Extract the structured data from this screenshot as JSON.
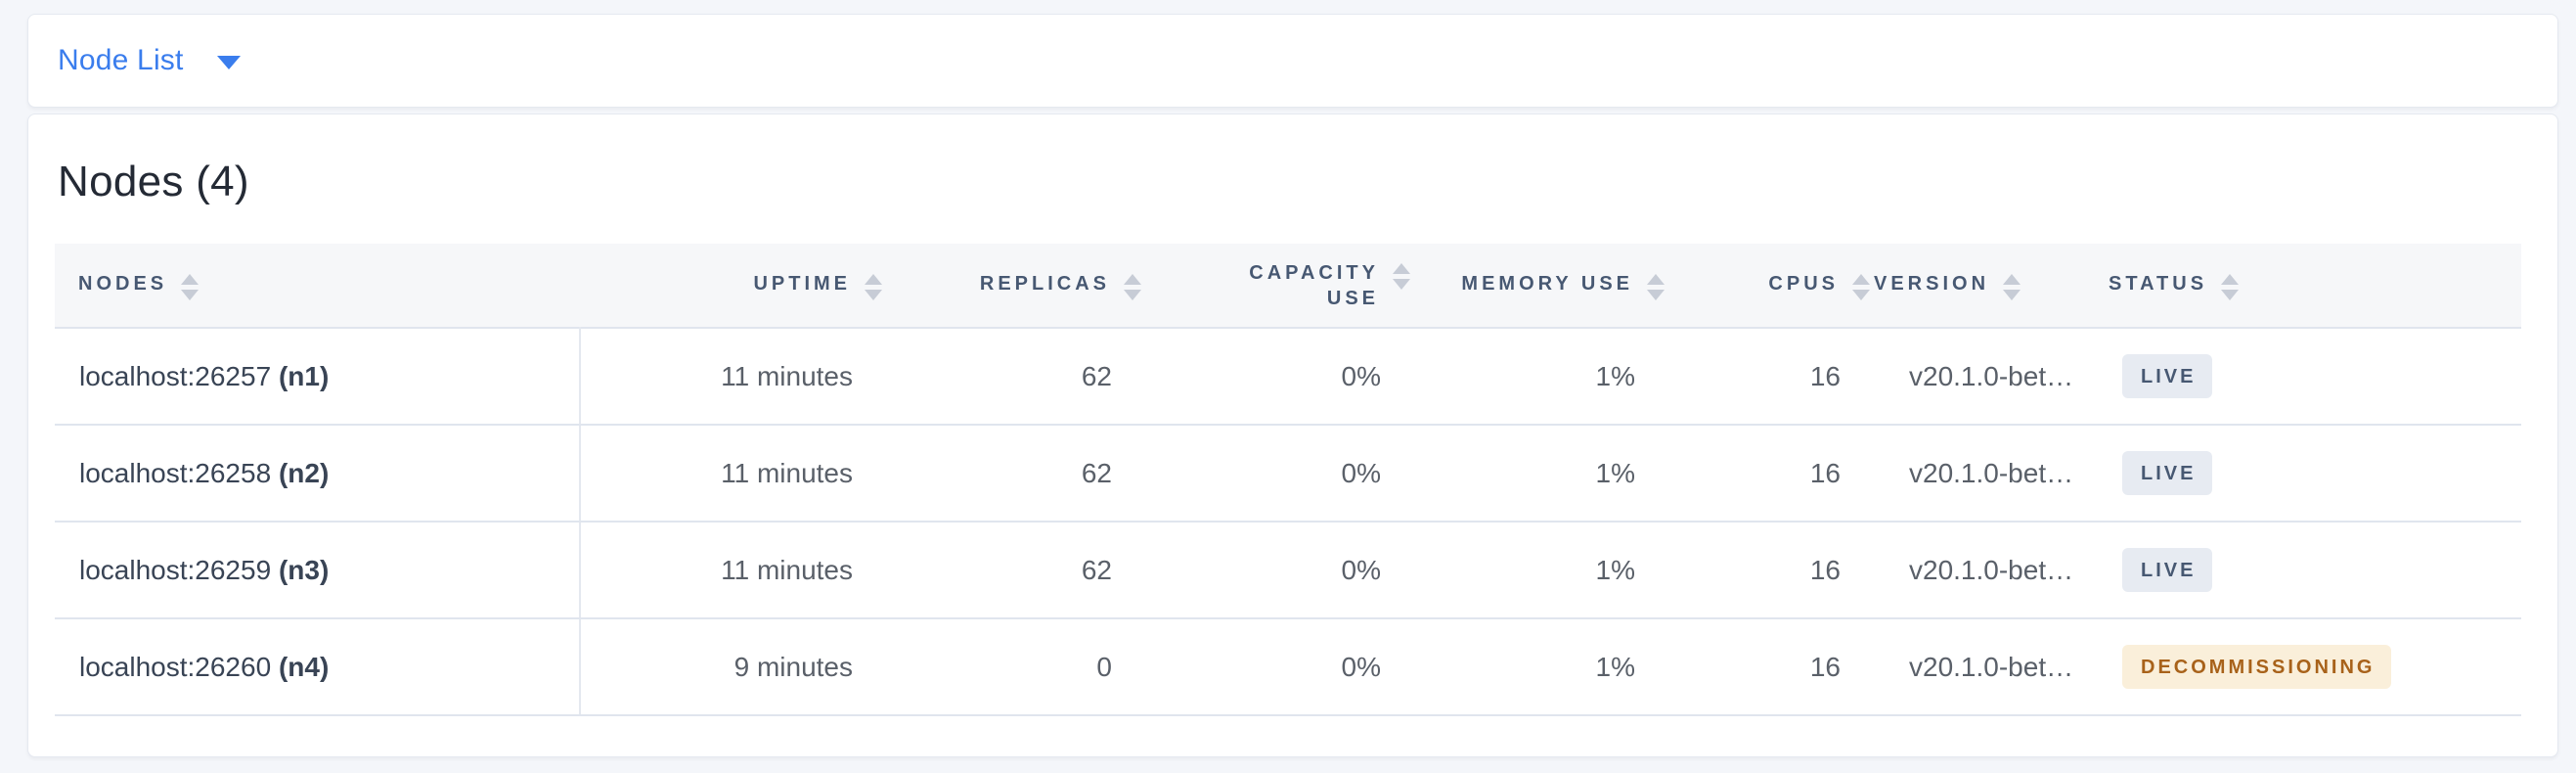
{
  "view_selector": {
    "label": "Node List",
    "icon": "caret-down-icon"
  },
  "nodes_section": {
    "title": "Nodes (4)"
  },
  "table": {
    "columns": [
      {
        "key": "node",
        "label": "NODES",
        "align": "left"
      },
      {
        "key": "uptime",
        "label": "UPTIME",
        "align": "right"
      },
      {
        "key": "replicas",
        "label": "REPLICAS",
        "align": "right"
      },
      {
        "key": "capacity",
        "label": "CAPACITY USE",
        "align": "right"
      },
      {
        "key": "memory",
        "label": "MEMORY USE",
        "align": "right"
      },
      {
        "key": "cpus",
        "label": "CPUS",
        "align": "right"
      },
      {
        "key": "version",
        "label": "VERSION",
        "align": "left"
      },
      {
        "key": "status",
        "label": "STATUS",
        "align": "left"
      }
    ],
    "rows": [
      {
        "node": "localhost:26257",
        "node_id": "(n1)",
        "uptime": "11 minutes",
        "replicas": "62",
        "capacity_use": "0%",
        "memory_use": "1%",
        "cpus": "16",
        "version": "v20.1.0-bet…",
        "status": "LIVE",
        "status_kind": "live"
      },
      {
        "node": "localhost:26258",
        "node_id": "(n2)",
        "uptime": "11 minutes",
        "replicas": "62",
        "capacity_use": "0%",
        "memory_use": "1%",
        "cpus": "16",
        "version": "v20.1.0-bet…",
        "status": "LIVE",
        "status_kind": "live"
      },
      {
        "node": "localhost:26259",
        "node_id": "(n3)",
        "uptime": "11 minutes",
        "replicas": "62",
        "capacity_use": "0%",
        "memory_use": "1%",
        "cpus": "16",
        "version": "v20.1.0-bet…",
        "status": "LIVE",
        "status_kind": "live"
      },
      {
        "node": "localhost:26260",
        "node_id": "(n4)",
        "uptime": "9 minutes",
        "replicas": "0",
        "capacity_use": "0%",
        "memory_use": "1%",
        "cpus": "16",
        "version": "v20.1.0-bet…",
        "status": "DECOMMISSIONING",
        "status_kind": "decommissioning"
      }
    ]
  },
  "colors": {
    "accent_blue": "#3a7ded",
    "heading_text": "#242a35",
    "header_text": "#475872",
    "cell_text": "#5a6069",
    "node_text": "#394455",
    "badge_live_bg": "#e7ebf2",
    "badge_live_text": "#475872",
    "badge_decommissioning_bg": "#faefda",
    "badge_decommissioning_text": "#a8621a",
    "page_bg": "#f4f6fa",
    "header_band_bg": "#f6f7f9",
    "row_border": "#e0e5ee"
  }
}
